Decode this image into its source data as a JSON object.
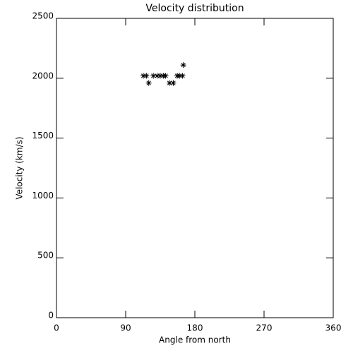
{
  "chart_data": {
    "type": "scatter",
    "title": "Velocity distribution",
    "xlabel": "Angle from north",
    "ylabel": "Velocity (km/s)",
    "series": [
      {
        "color": "#000000",
        "x": [
          113,
          117,
          126,
          131,
          135,
          139,
          142,
          157,
          160,
          164,
          120,
          147,
          152,
          165
        ],
        "values": [
          2020,
          2020,
          2020,
          2020,
          2020,
          2020,
          2020,
          2020,
          2020,
          2020,
          1960,
          1960,
          1960,
          2110
        ]
      }
    ],
    "xlim": [
      0,
      360
    ],
    "xticks": [
      0,
      90,
      180,
      270,
      360
    ],
    "ylim": [
      0,
      2500
    ],
    "yticks": [
      0,
      500,
      1000,
      1500,
      2000,
      2500
    ]
  }
}
